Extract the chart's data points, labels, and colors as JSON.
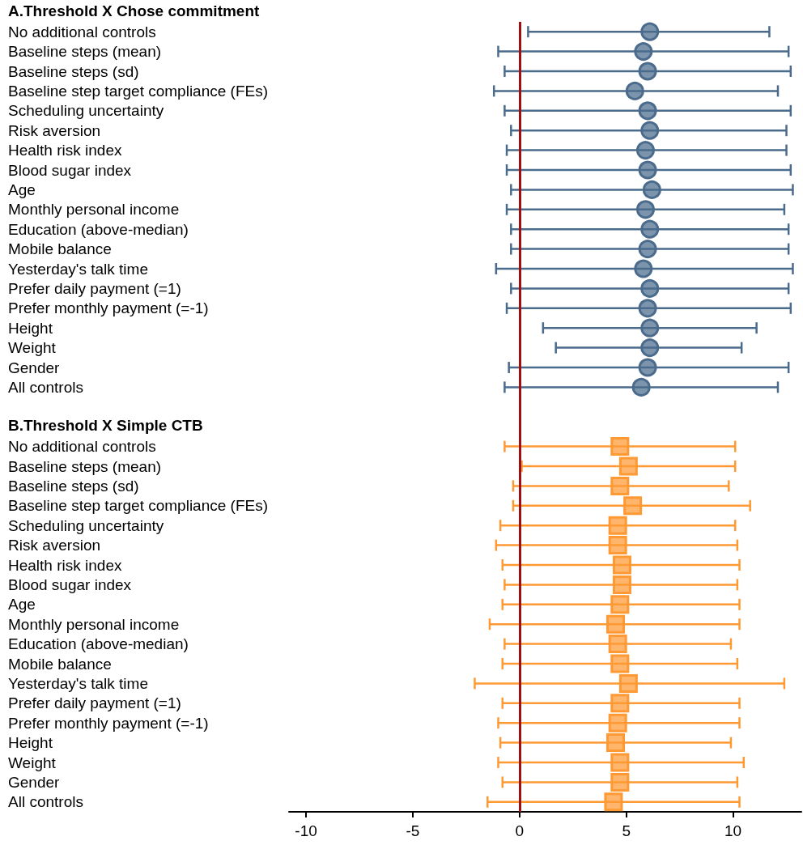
{
  "chart_data": {
    "type": "scatter",
    "orientation": "horizontal",
    "annotations": [
      "A.Threshold X Chose commitment",
      "B.Threshold X Simple CTB"
    ],
    "categories": [
      "No additional controls",
      "Baseline steps (mean)",
      "Baseline steps (sd)",
      "Baseline step target compliance (FEs)",
      "Scheduling uncertainty",
      "Risk aversion",
      "Health risk index",
      "Blood sugar index",
      "Age",
      "Monthly personal income",
      "Education (above-median)",
      "Mobile balance",
      "Yesterday's talk time",
      "Prefer daily payment (=1)",
      "Prefer monthly payment (=-1)",
      "Height",
      "Weight",
      "Gender",
      "All controls",
      null,
      null,
      "No additional controls",
      "Baseline steps (mean)",
      "Baseline steps (sd)",
      "Baseline step target compliance (FEs)",
      "Scheduling uncertainty",
      "Risk aversion",
      "Health risk index",
      "Blood sugar index",
      "Age",
      "Monthly personal income",
      "Education (above-median)",
      "Mobile balance",
      "Yesterday's talk time",
      "Prefer daily payment (=1)",
      "Prefer monthly payment (=-1)",
      "Height",
      "Weight",
      "Gender",
      "All controls"
    ],
    "series": [
      {
        "color": "#4a6b8c",
        "marker": "circle",
        "values": [
          6.1,
          5.8,
          6.0,
          5.4,
          6.0,
          6.1,
          5.9,
          6.0,
          6.2,
          5.9,
          6.1,
          6.0,
          5.8,
          6.1,
          6.0,
          6.1,
          6.1,
          6.0,
          5.7,
          null,
          null,
          null,
          null,
          null,
          null,
          null,
          null,
          null,
          null,
          null,
          null,
          null,
          null,
          null,
          null,
          null,
          null,
          null,
          null,
          null
        ],
        "errors": [
          [
            0.4,
            11.7
          ],
          [
            -1.0,
            12.6
          ],
          [
            -0.7,
            12.7
          ],
          [
            -1.2,
            12.1
          ],
          [
            -0.7,
            12.7
          ],
          [
            -0.4,
            12.5
          ],
          [
            -0.6,
            12.5
          ],
          [
            -0.6,
            12.7
          ],
          [
            -0.4,
            12.8
          ],
          [
            -0.6,
            12.4
          ],
          [
            -0.4,
            12.6
          ],
          [
            -0.4,
            12.6
          ],
          [
            -1.1,
            12.8
          ],
          [
            -0.4,
            12.6
          ],
          [
            -0.6,
            12.7
          ],
          [
            1.1,
            11.1
          ],
          [
            1.7,
            10.4
          ],
          [
            -0.5,
            12.6
          ],
          [
            -0.7,
            12.1
          ],
          null,
          null,
          null,
          null,
          null,
          null,
          null,
          null,
          null,
          null,
          null,
          null,
          null,
          null,
          null,
          null,
          null,
          null,
          null,
          null,
          null
        ]
      },
      {
        "color": "#ff9933",
        "marker": "square",
        "values": [
          null,
          null,
          null,
          null,
          null,
          null,
          null,
          null,
          null,
          null,
          null,
          null,
          null,
          null,
          null,
          null,
          null,
          null,
          null,
          null,
          null,
          4.7,
          5.1,
          4.7,
          5.3,
          4.6,
          4.6,
          4.8,
          4.8,
          4.7,
          4.5,
          4.6,
          4.7,
          5.1,
          4.7,
          4.6,
          4.5,
          4.7,
          4.7,
          4.4
        ],
        "errors": [
          null,
          null,
          null,
          null,
          null,
          null,
          null,
          null,
          null,
          null,
          null,
          null,
          null,
          null,
          null,
          null,
          null,
          null,
          null,
          null,
          null,
          [
            -0.7,
            10.1
          ],
          [
            0.1,
            10.1
          ],
          [
            -0.3,
            9.8
          ],
          [
            -0.3,
            10.8
          ],
          [
            -0.9,
            10.1
          ],
          [
            -1.1,
            10.2
          ],
          [
            -0.8,
            10.3
          ],
          [
            -0.7,
            10.2
          ],
          [
            -0.8,
            10.3
          ],
          [
            -1.4,
            10.3
          ],
          [
            -0.7,
            9.9
          ],
          [
            -0.8,
            10.2
          ],
          [
            -2.1,
            12.4
          ],
          [
            -0.8,
            10.3
          ],
          [
            -1.0,
            10.3
          ],
          [
            -0.9,
            9.9
          ],
          [
            -1.0,
            10.5
          ],
          [
            -0.8,
            10.2
          ],
          [
            -1.5,
            10.3
          ]
        ]
      }
    ],
    "xlim": [
      -10.8,
      13.2
    ],
    "xticks": [
      -10,
      -5,
      0,
      5,
      10
    ],
    "ref_lines": [
      {
        "axis": "x",
        "value": 0,
        "color": "#a01010"
      }
    ]
  }
}
